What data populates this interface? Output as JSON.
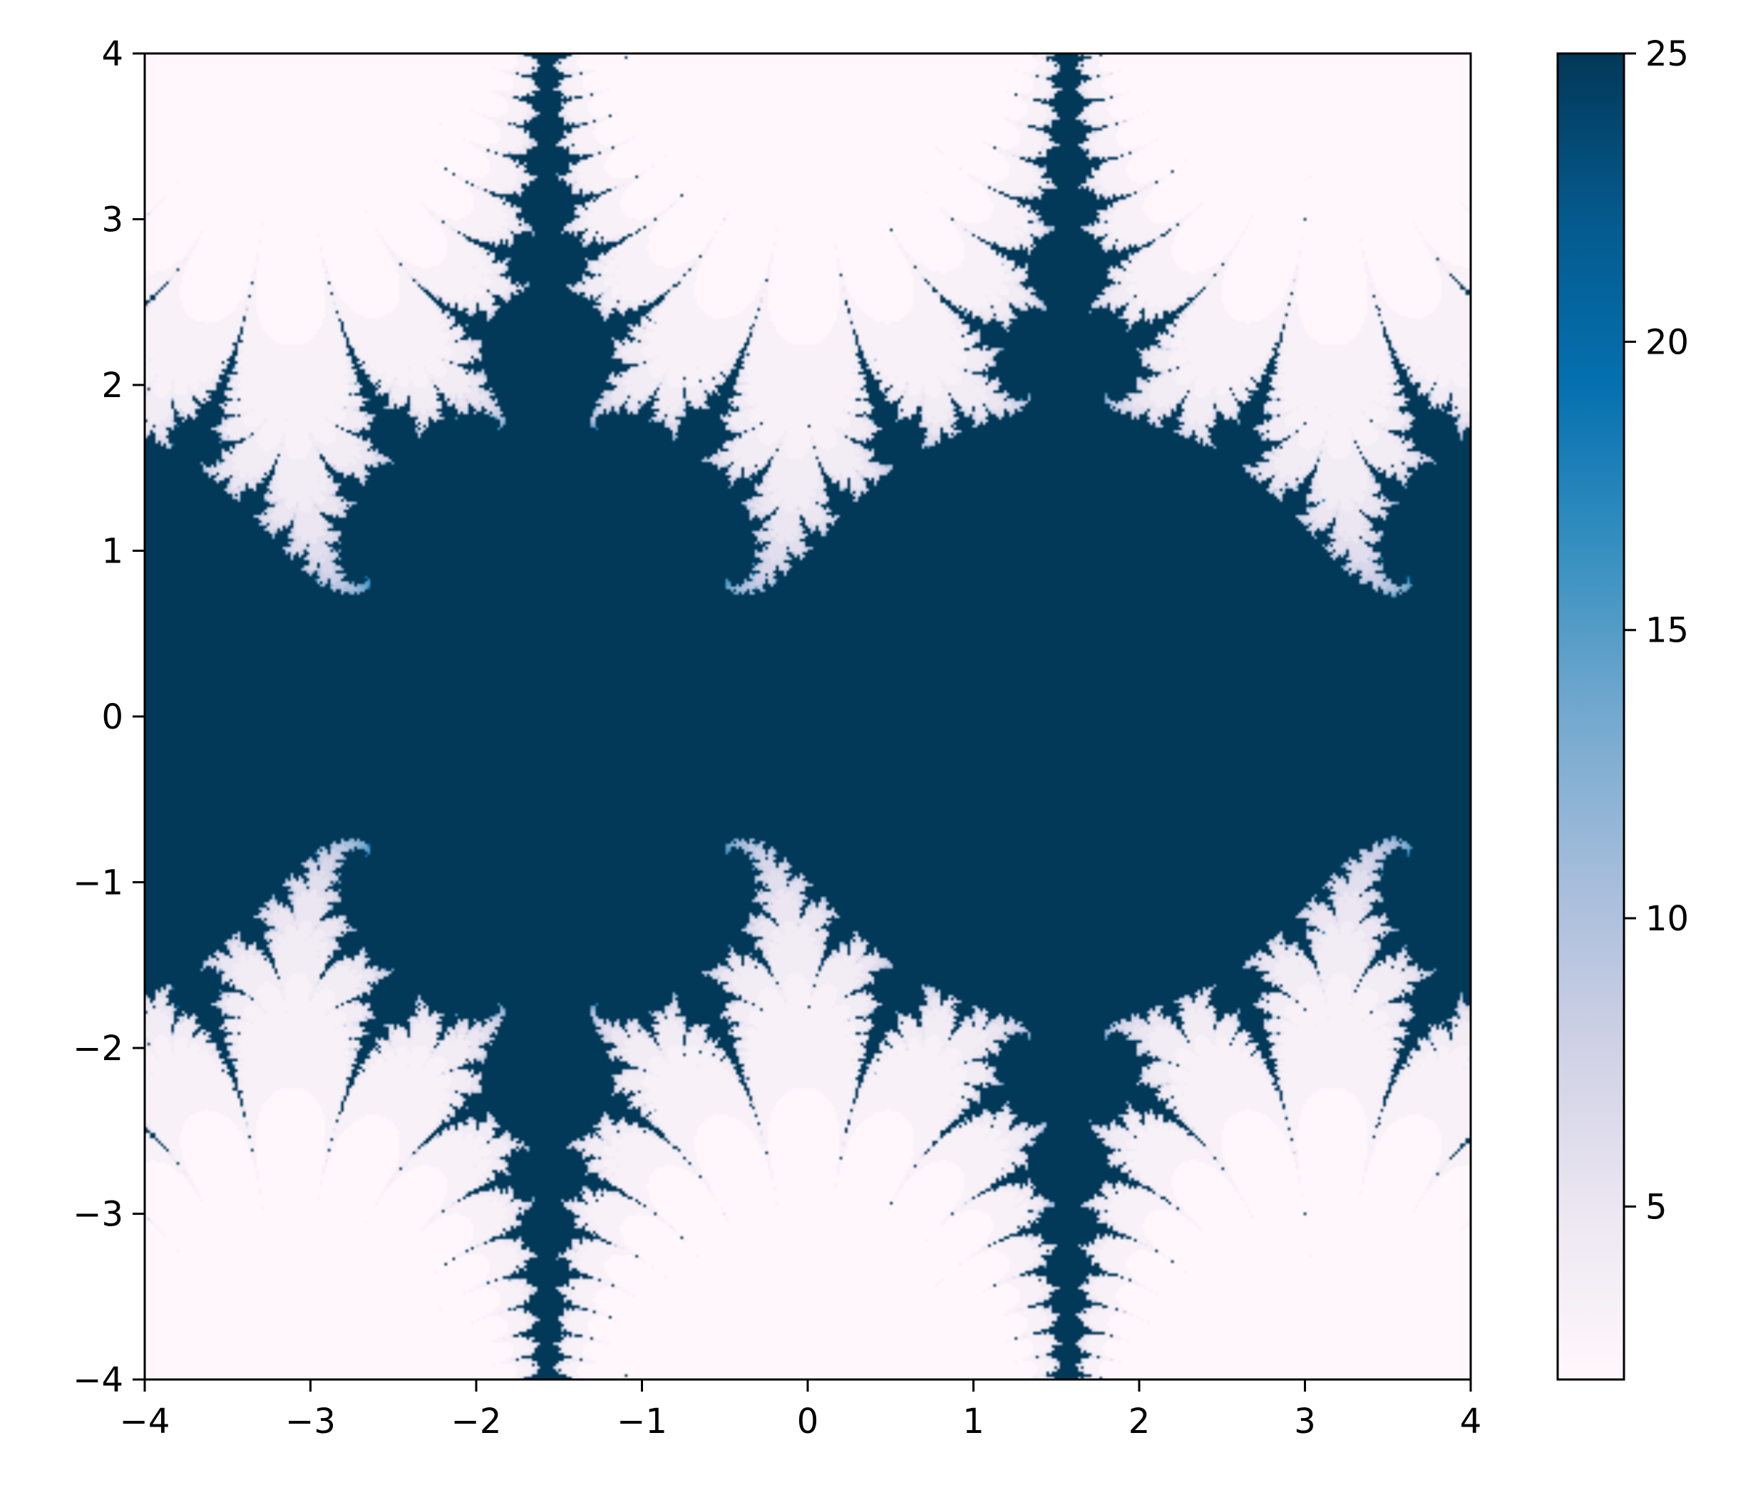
{
  "chart_data": {
    "type": "heatmap",
    "title": "",
    "xlabel": "",
    "ylabel": "",
    "xlim": [
      -4,
      4
    ],
    "ylim": [
      -4,
      4
    ],
    "x_ticks": [
      -4,
      -3,
      -2,
      -1,
      0,
      1,
      2,
      3,
      4
    ],
    "y_ticks": [
      -4,
      -3,
      -2,
      -1,
      0,
      1,
      2,
      3,
      4
    ],
    "x_tick_labels": [
      "−4",
      "−3",
      "−2",
      "−1",
      "0",
      "1",
      "2",
      "3",
      "4"
    ],
    "y_tick_labels": [
      "−4",
      "−3",
      "−2",
      "−1",
      "0",
      "1",
      "2",
      "3",
      "4"
    ],
    "grid": false,
    "colormap": "PuBu",
    "colormap_stops": [
      "#fff7fb",
      "#ece7f2",
      "#d0d1e6",
      "#a6bddb",
      "#74a9cf",
      "#3690c0",
      "#0570b0",
      "#045a8d",
      "#023858"
    ],
    "value_range": [
      2,
      25
    ],
    "colorbar": {
      "placement": "right",
      "ticks": [
        5,
        10,
        15,
        20,
        25
      ],
      "tick_labels": [
        "5",
        "10",
        "15",
        "20",
        "25"
      ]
    },
    "description_of_field": "escape-time fractal: iteration count over the plane"
  }
}
